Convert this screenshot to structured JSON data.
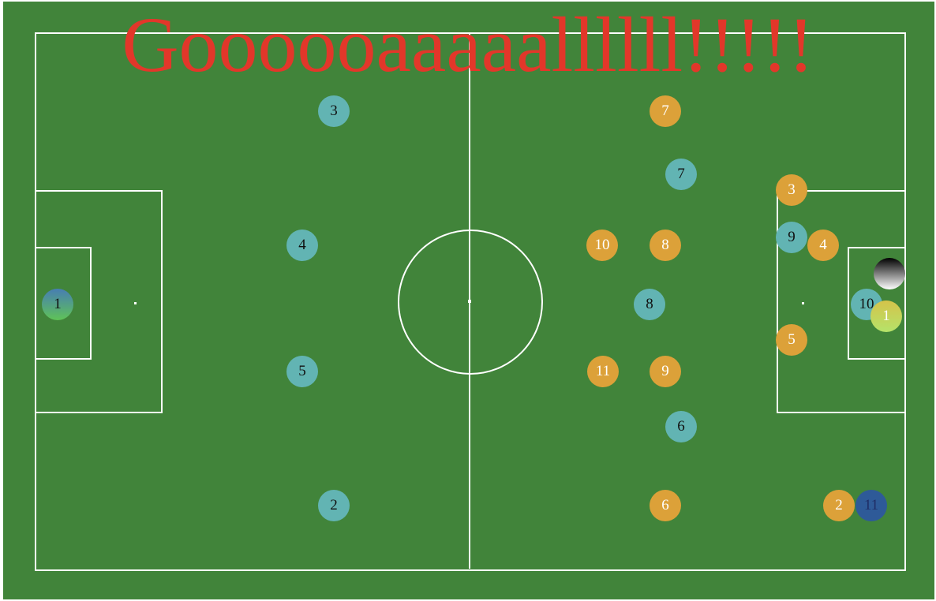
{
  "banner": {
    "text": "Goooooaaaaallllll!!!!!",
    "color": "#e2372a"
  },
  "pitch": {
    "grass_color": "#41843a",
    "line_color": "#ffffff"
  },
  "teams": {
    "home": {
      "color": "#62b4b3",
      "players": [
        {
          "id": "home-1",
          "number": "1"
        },
        {
          "id": "home-2",
          "number": "2"
        },
        {
          "id": "home-3",
          "number": "3"
        },
        {
          "id": "home-4",
          "number": "4"
        },
        {
          "id": "home-5",
          "number": "5"
        },
        {
          "id": "home-6",
          "number": "6"
        },
        {
          "id": "home-7",
          "number": "7"
        },
        {
          "id": "home-8",
          "number": "8"
        },
        {
          "id": "home-9",
          "number": "9"
        },
        {
          "id": "home-10",
          "number": "10"
        },
        {
          "id": "home-11",
          "number": "11"
        }
      ]
    },
    "away": {
      "color": "#dca139",
      "players": [
        {
          "id": "away-1",
          "number": "1"
        },
        {
          "id": "away-2",
          "number": "2"
        },
        {
          "id": "away-3",
          "number": "3"
        },
        {
          "id": "away-4",
          "number": "4"
        },
        {
          "id": "away-5",
          "number": "5"
        },
        {
          "id": "away-6",
          "number": "6"
        },
        {
          "id": "away-7",
          "number": "7"
        },
        {
          "id": "away-8",
          "number": "8"
        },
        {
          "id": "away-9",
          "number": "9"
        },
        {
          "id": "away-10",
          "number": "10"
        },
        {
          "id": "away-11",
          "number": "11"
        }
      ]
    }
  },
  "ball": {
    "icon": "ball-icon"
  }
}
